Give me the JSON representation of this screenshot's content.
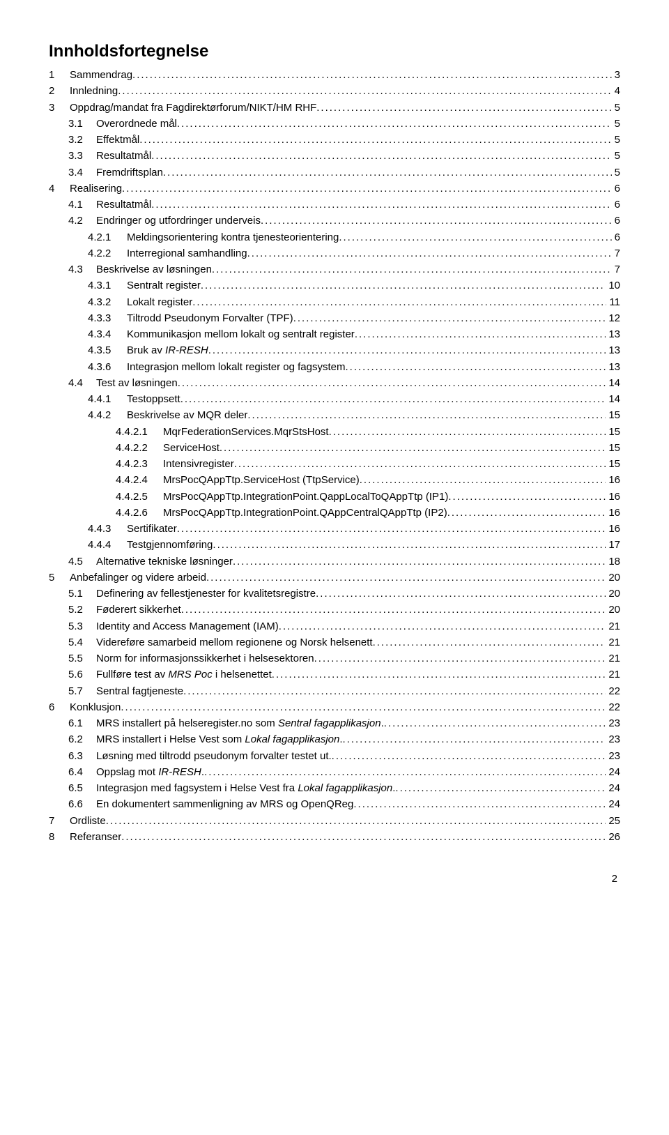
{
  "title": "Innholdsfortegnelse",
  "page_number": "2",
  "entries": [
    {
      "level": 0,
      "num": "1",
      "label": "Sammendrag",
      "page": "3"
    },
    {
      "level": 0,
      "num": "2",
      "label": "Innledning",
      "page": "4"
    },
    {
      "level": 0,
      "num": "3",
      "label": "Oppdrag/mandat fra Fagdirektørforum/NIKT/HM RHF",
      "page": "5"
    },
    {
      "level": 1,
      "num": "3.1",
      "label": "Overordnede mål",
      "page": "5"
    },
    {
      "level": 1,
      "num": "3.2",
      "label": "Effektmål",
      "page": "5"
    },
    {
      "level": 1,
      "num": "3.3",
      "label": "Resultatmål",
      "page": "5"
    },
    {
      "level": 1,
      "num": "3.4",
      "label": "Fremdriftsplan",
      "page": "5"
    },
    {
      "level": 0,
      "num": "4",
      "label": "Realisering",
      "page": "6"
    },
    {
      "level": 1,
      "num": "4.1",
      "label": "Resultatmål",
      "page": "6"
    },
    {
      "level": 1,
      "num": "4.2",
      "label": "Endringer og utfordringer underveis",
      "page": "6"
    },
    {
      "level": 2,
      "num": "4.2.1",
      "label": "Meldingsorientering kontra tjenesteorientering",
      "page": "6"
    },
    {
      "level": 2,
      "num": "4.2.2",
      "label": "Interregional samhandling",
      "page": "7"
    },
    {
      "level": 1,
      "num": "4.3",
      "label": "Beskrivelse av løsningen",
      "page": "7"
    },
    {
      "level": 2,
      "num": "4.3.1",
      "label": "Sentralt register",
      "page": "10"
    },
    {
      "level": 2,
      "num": "4.3.2",
      "label": "Lokalt register",
      "page": "11"
    },
    {
      "level": 2,
      "num": "4.3.3",
      "label": "Tiltrodd Pseudonym Forvalter (TPF)",
      "page": "12"
    },
    {
      "level": 2,
      "num": "4.3.4",
      "label": "Kommunikasjon mellom lokalt og sentralt register",
      "page": "13"
    },
    {
      "level": 2,
      "num": "4.3.5",
      "label_parts": [
        {
          "t": "Bruk av ",
          "i": false
        },
        {
          "t": "IR-RESH",
          "i": true
        }
      ],
      "page": "13"
    },
    {
      "level": 2,
      "num": "4.3.6",
      "label": "Integrasjon mellom lokalt register og fagsystem",
      "page": "13"
    },
    {
      "level": 1,
      "num": "4.4",
      "label": "Test av løsningen",
      "page": "14"
    },
    {
      "level": 2,
      "num": "4.4.1",
      "label": "Testoppsett",
      "page": "14"
    },
    {
      "level": 2,
      "num": "4.4.2",
      "label": "Beskrivelse av MQR deler",
      "page": "15"
    },
    {
      "level": 3,
      "num": "4.4.2.1",
      "label": "MqrFederationServices.MqrStsHost",
      "page": "15"
    },
    {
      "level": 3,
      "num": "4.4.2.2",
      "label": "ServiceHost",
      "page": "15"
    },
    {
      "level": 3,
      "num": "4.4.2.3",
      "label": "Intensivregister",
      "page": "15"
    },
    {
      "level": 3,
      "num": "4.4.2.4",
      "label": "MrsPocQAppTtp.ServiceHost (TtpService)",
      "page": "16"
    },
    {
      "level": 3,
      "num": "4.4.2.5",
      "label": "MrsPocQAppTtp.IntegrationPoint.QappLocalToQAppTtp (IP1)",
      "page": "16"
    },
    {
      "level": 3,
      "num": "4.4.2.6",
      "label": "MrsPocQAppTtp.IntegrationPoint.QAppCentralQAppTtp (IP2)",
      "page": "16"
    },
    {
      "level": 2,
      "num": "4.4.3",
      "label": "Sertifikater",
      "page": "16"
    },
    {
      "level": 2,
      "num": "4.4.4",
      "label": "Testgjennomføring",
      "page": "17"
    },
    {
      "level": 1,
      "num": "4.5",
      "label": "Alternative tekniske løsninger",
      "page": "18"
    },
    {
      "level": 0,
      "num": "5",
      "label": "Anbefalinger og videre arbeid",
      "page": "20"
    },
    {
      "level": 1,
      "num": "5.1",
      "label": "Definering av fellestjenester for kvalitetsregistre",
      "page": "20"
    },
    {
      "level": 1,
      "num": "5.2",
      "label": "Føderert sikkerhet",
      "page": "20"
    },
    {
      "level": 1,
      "num": "5.3",
      "label": "Identity and Access Management (IAM)",
      "page": "21"
    },
    {
      "level": 1,
      "num": "5.4",
      "label": "Videreføre samarbeid mellom regionene og Norsk helsenett",
      "page": "21"
    },
    {
      "level": 1,
      "num": "5.5",
      "label": "Norm for informasjonssikkerhet i helsesektoren",
      "page": "21"
    },
    {
      "level": 1,
      "num": "5.6",
      "label_parts": [
        {
          "t": "Fullføre test av ",
          "i": false
        },
        {
          "t": "MRS Poc",
          "i": true
        },
        {
          "t": " i helsenettet",
          "i": false
        }
      ],
      "page": "21"
    },
    {
      "level": 1,
      "num": "5.7",
      "label": "Sentral fagtjeneste",
      "page": "22"
    },
    {
      "level": 0,
      "num": "6",
      "label": "Konklusjon",
      "page": "22"
    },
    {
      "level": 1,
      "num": "6.1",
      "label_parts": [
        {
          "t": "MRS installert på helseregister.no som ",
          "i": false
        },
        {
          "t": "Sentral fagapplikasjon",
          "i": true
        },
        {
          "t": ".",
          "i": false
        }
      ],
      "page": "23"
    },
    {
      "level": 1,
      "num": "6.2",
      "label_parts": [
        {
          "t": "MRS installert i Helse Vest som ",
          "i": false
        },
        {
          "t": "Lokal fagapplikasjon",
          "i": true
        },
        {
          "t": ".",
          "i": false
        }
      ],
      "page": "23"
    },
    {
      "level": 1,
      "num": "6.3",
      "label": "Løsning med tiltrodd pseudonym forvalter testet ut.",
      "page": "23"
    },
    {
      "level": 1,
      "num": "6.4",
      "label_parts": [
        {
          "t": "Oppslag mot ",
          "i": false
        },
        {
          "t": "IR-RESH",
          "i": true
        },
        {
          "t": ".",
          "i": false
        }
      ],
      "page": "24"
    },
    {
      "level": 1,
      "num": "6.5",
      "label_parts": [
        {
          "t": "Integrasjon med fagsystem i Helse Vest fra ",
          "i": false
        },
        {
          "t": "Lokal fagapplikasjon",
          "i": true
        },
        {
          "t": ".",
          "i": false
        }
      ],
      "page": "24"
    },
    {
      "level": 1,
      "num": "6.6",
      "label": "En dokumentert sammenligning av MRS og OpenQReg",
      "page": "24"
    },
    {
      "level": 0,
      "num": "7",
      "label": "Ordliste",
      "page": "25"
    },
    {
      "level": 0,
      "num": "8",
      "label": "Referanser",
      "page": "26"
    }
  ],
  "num_col_widths": {
    "l0": 30,
    "l1": 40,
    "l2": 56,
    "l3": 68
  }
}
